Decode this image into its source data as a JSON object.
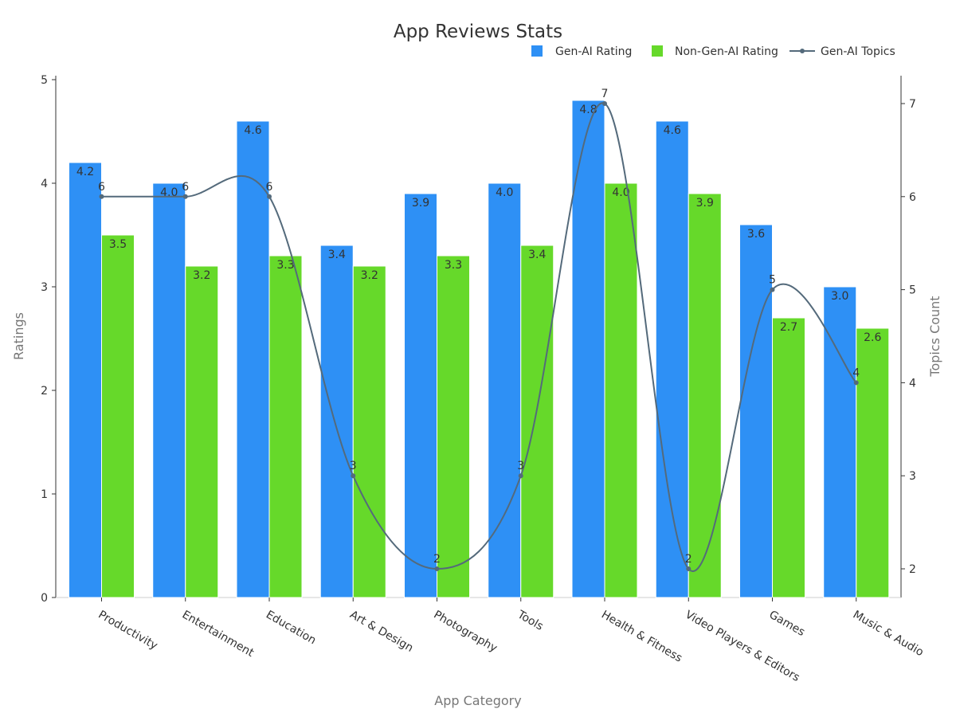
{
  "chart_data": {
    "type": "bar",
    "title": "App Reviews Stats",
    "xlabel": "App Category",
    "ylabel": "Ratings",
    "y2label": "Topics Count",
    "ylim": [
      0,
      5
    ],
    "y2lim": [
      1.7,
      7.3
    ],
    "yticks": [
      "0",
      "1",
      "2",
      "3",
      "4",
      "5"
    ],
    "y2ticks": [
      "2",
      "3",
      "4",
      "5",
      "6",
      "7"
    ],
    "grid": false,
    "legend_position": "top-right",
    "categories": [
      "Productivity",
      "Entertainment",
      "Education",
      "Art & Design",
      "Photography",
      "Tools",
      "Health & Fitness",
      "Video Players & Editors",
      "Games",
      "Music & Audio"
    ],
    "series": [
      {
        "name": "Gen-AI Rating",
        "kind": "bar",
        "color": "#2e90f5",
        "values": [
          4.2,
          4.0,
          4.6,
          3.4,
          3.9,
          4.0,
          4.8,
          4.6,
          3.6,
          3.0
        ]
      },
      {
        "name": "Non-Gen-AI Rating",
        "kind": "bar",
        "color": "#66d92a",
        "values": [
          3.5,
          3.2,
          3.3,
          3.2,
          3.3,
          3.4,
          4.0,
          3.9,
          2.7,
          2.6
        ]
      },
      {
        "name": "Gen-AI Topics",
        "kind": "line",
        "axis": "right",
        "color": "#546a7b",
        "values": [
          6,
          6,
          6,
          3,
          2,
          3,
          7,
          2,
          5,
          4
        ]
      }
    ]
  }
}
